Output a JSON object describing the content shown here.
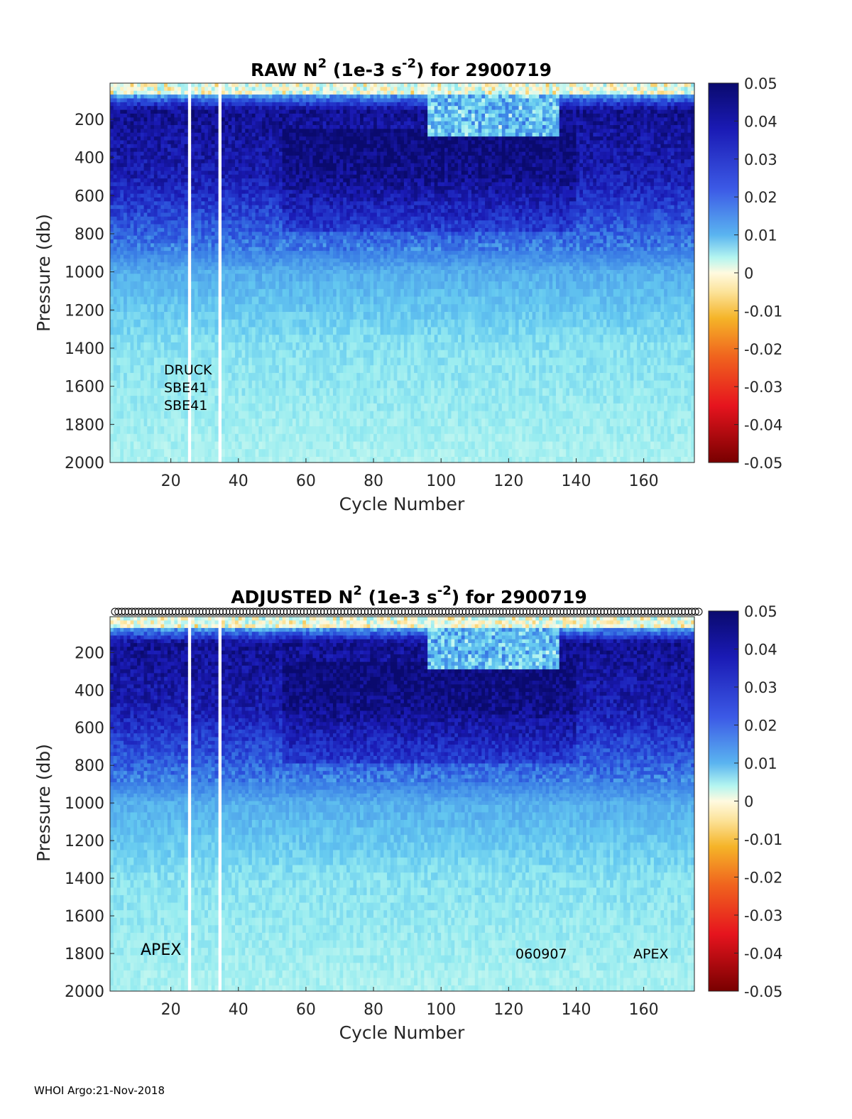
{
  "footer": "WHOI Argo:21-Nov-2018",
  "colorbar": {
    "ticks": [
      "0.05",
      "0.04",
      "0.03",
      "0.02",
      "0.01",
      "0",
      "-0.01",
      "-0.02",
      "-0.03",
      "-0.04",
      "-0.05"
    ],
    "range": [
      -0.05,
      0.05
    ]
  },
  "chart_data": [
    {
      "type": "heatmap",
      "title_main": "RAW N",
      "title_sup1": "2",
      "title_mid": " (1e-3 s",
      "title_sup2": "-2",
      "title_end": ") for 2900719",
      "xlabel": "Cycle Number",
      "ylabel": "Pressure (db)",
      "xlim": [
        2,
        175
      ],
      "ylim": [
        2000,
        10
      ],
      "xticks": [
        "20",
        "40",
        "60",
        "80",
        "100",
        "120",
        "140",
        "160"
      ],
      "yticks": [
        "200",
        "400",
        "600",
        "800",
        "1000",
        "1200",
        "1400",
        "1600",
        "1800",
        "2000"
      ],
      "clim": [
        -0.05,
        0.05
      ],
      "annotations": [
        "DRUCK",
        "SBE41",
        "SBE41"
      ],
      "value_profile": [
        {
          "pressure": 30,
          "value": 0.0
        },
        {
          "pressure": 150,
          "value": 0.045
        },
        {
          "pressure": 500,
          "value": 0.04
        },
        {
          "pressure": 800,
          "value": 0.025
        },
        {
          "pressure": 1000,
          "value": 0.015
        },
        {
          "pressure": 1400,
          "value": 0.009
        },
        {
          "pressure": 2000,
          "value": 0.006
        }
      ]
    },
    {
      "type": "heatmap",
      "title_main": "ADJUSTED N",
      "title_sup1": "2",
      "title_mid": " (1e-3 s",
      "title_sup2": "-2",
      "title_end": ") for 2900719",
      "xlabel": "Cycle Number",
      "ylabel": "Pressure (db)",
      "xlim": [
        2,
        175
      ],
      "ylim": [
        2000,
        10
      ],
      "xticks": [
        "20",
        "40",
        "60",
        "80",
        "100",
        "120",
        "140",
        "160"
      ],
      "yticks": [
        "200",
        "400",
        "600",
        "800",
        "1000",
        "1200",
        "1400",
        "1600",
        "1800",
        "2000"
      ],
      "clim": [
        -0.05,
        0.05
      ],
      "annotations": [
        "APEX",
        "060907",
        "APEX"
      ],
      "value_profile": [
        {
          "pressure": 30,
          "value": 0.0
        },
        {
          "pressure": 150,
          "value": 0.045
        },
        {
          "pressure": 500,
          "value": 0.04
        },
        {
          "pressure": 800,
          "value": 0.025
        },
        {
          "pressure": 1000,
          "value": 0.015
        },
        {
          "pressure": 1400,
          "value": 0.009
        },
        {
          "pressure": 2000,
          "value": 0.006
        }
      ]
    }
  ]
}
